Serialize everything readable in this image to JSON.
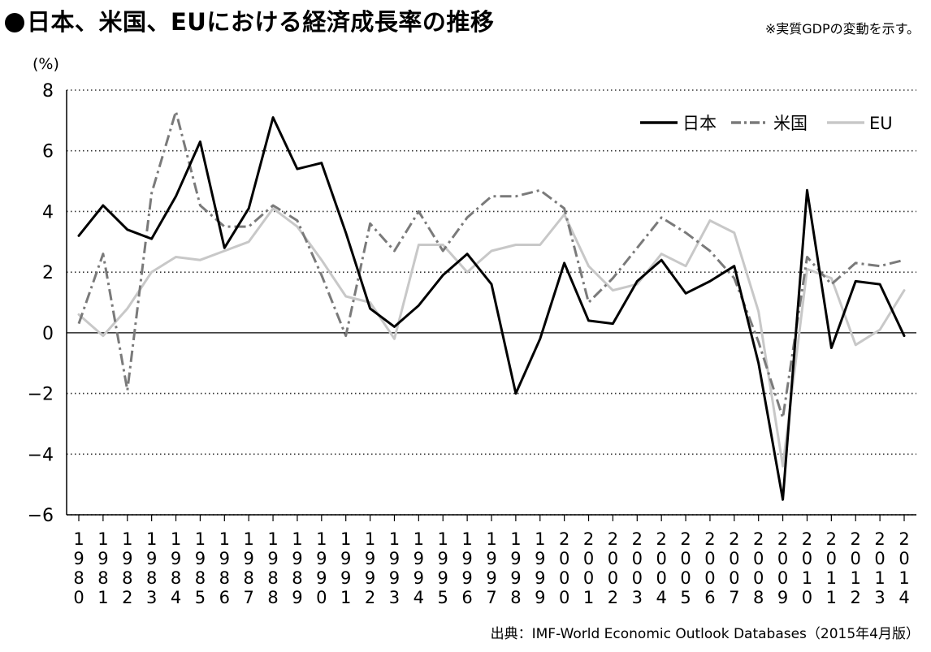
{
  "header": {
    "title": "日本、米国、EUにおける経済成長率の推移",
    "note": "※実質GDPの変動を示す。"
  },
  "footer": {
    "source": "出典：IMF-World Economic Outlook Databases（2015年4月版）"
  },
  "chart_data": {
    "type": "line",
    "ylabel": "(%)",
    "ylim": [
      -6,
      8
    ],
    "yticks": [
      8,
      6,
      4,
      2,
      0,
      -2,
      -4,
      -6
    ],
    "ytick_labels": [
      "8",
      "6",
      "4",
      "2",
      "0",
      "−2",
      "−4",
      "−6"
    ],
    "grid": "horizontal dotted",
    "legend_position": "top-right",
    "x": [
      1980,
      1981,
      1982,
      1983,
      1984,
      1985,
      1986,
      1987,
      1988,
      1989,
      1990,
      1991,
      1992,
      1993,
      1994,
      1995,
      1996,
      1997,
      1998,
      1999,
      2000,
      2001,
      2002,
      2003,
      2004,
      2005,
      2006,
      2007,
      2008,
      2009,
      2010,
      2011,
      2012,
      2013,
      2014
    ],
    "x_labels": [
      "1980",
      "1981",
      "1982",
      "1983",
      "1984",
      "1985",
      "1986",
      "1987",
      "1988",
      "1989",
      "1990",
      "1991",
      "1992",
      "1993",
      "1994",
      "1995",
      "1996",
      "1997",
      "1998",
      "1999",
      "2000",
      "2001",
      "2002",
      "2003",
      "2004",
      "2005",
      "2006",
      "2007",
      "2008",
      "2009",
      "2010",
      "2011",
      "2012",
      "2013",
      "2014"
    ],
    "series": [
      {
        "name": "日本",
        "color": "#000000",
        "style": "solid",
        "values": [
          3.2,
          4.2,
          3.4,
          3.1,
          4.5,
          6.3,
          2.8,
          4.1,
          7.1,
          5.4,
          5.6,
          3.3,
          0.8,
          0.2,
          0.9,
          1.9,
          2.6,
          1.6,
          -2.0,
          -0.2,
          2.3,
          0.4,
          0.3,
          1.7,
          2.4,
          1.3,
          1.7,
          2.2,
          -1.0,
          -5.5,
          4.7,
          -0.5,
          1.7,
          1.6,
          -0.1
        ]
      },
      {
        "name": "米国",
        "color": "#7a7a7a",
        "style": "dashdot",
        "values": [
          0.3,
          2.6,
          -1.9,
          4.6,
          7.3,
          4.2,
          3.5,
          3.5,
          4.2,
          3.7,
          1.9,
          -0.1,
          3.6,
          2.7,
          4.0,
          2.7,
          3.8,
          4.5,
          4.5,
          4.7,
          4.1,
          1.0,
          1.8,
          2.8,
          3.8,
          3.3,
          2.7,
          1.8,
          -0.3,
          -2.8,
          2.5,
          1.6,
          2.3,
          2.2,
          2.4
        ]
      },
      {
        "name": "EU",
        "color": "#c8c8c8",
        "style": "solid",
        "values": [
          0.6,
          -0.1,
          0.8,
          2.0,
          2.5,
          2.4,
          2.7,
          3.0,
          4.1,
          3.5,
          2.4,
          1.2,
          1.0,
          -0.2,
          2.9,
          2.9,
          2.0,
          2.7,
          2.9,
          2.9,
          3.9,
          2.2,
          1.4,
          1.6,
          2.6,
          2.2,
          3.7,
          3.3,
          0.7,
          -4.4,
          2.1,
          1.8,
          -0.4,
          0.1,
          1.4
        ]
      }
    ]
  }
}
